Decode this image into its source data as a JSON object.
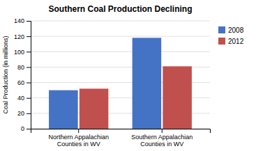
{
  "chart_data": {
    "type": "bar",
    "title": "Southern Coal Production Declining",
    "categories": [
      "Northern Appalachian\nCounties in WV",
      "Southern Appalachian\nCounties in WV"
    ],
    "series": [
      {
        "name": "2008",
        "color": "#4472C4",
        "values": [
          50,
          118
        ]
      },
      {
        "name": "2012",
        "color": "#C0504D",
        "values": [
          52,
          81
        ]
      }
    ],
    "ylabel": "Coal Production (in millions)",
    "ylim": [
      0,
      140
    ],
    "yticks": [
      0,
      20,
      40,
      60,
      80,
      100,
      120,
      140
    ],
    "grid": true,
    "legend": "right"
  }
}
